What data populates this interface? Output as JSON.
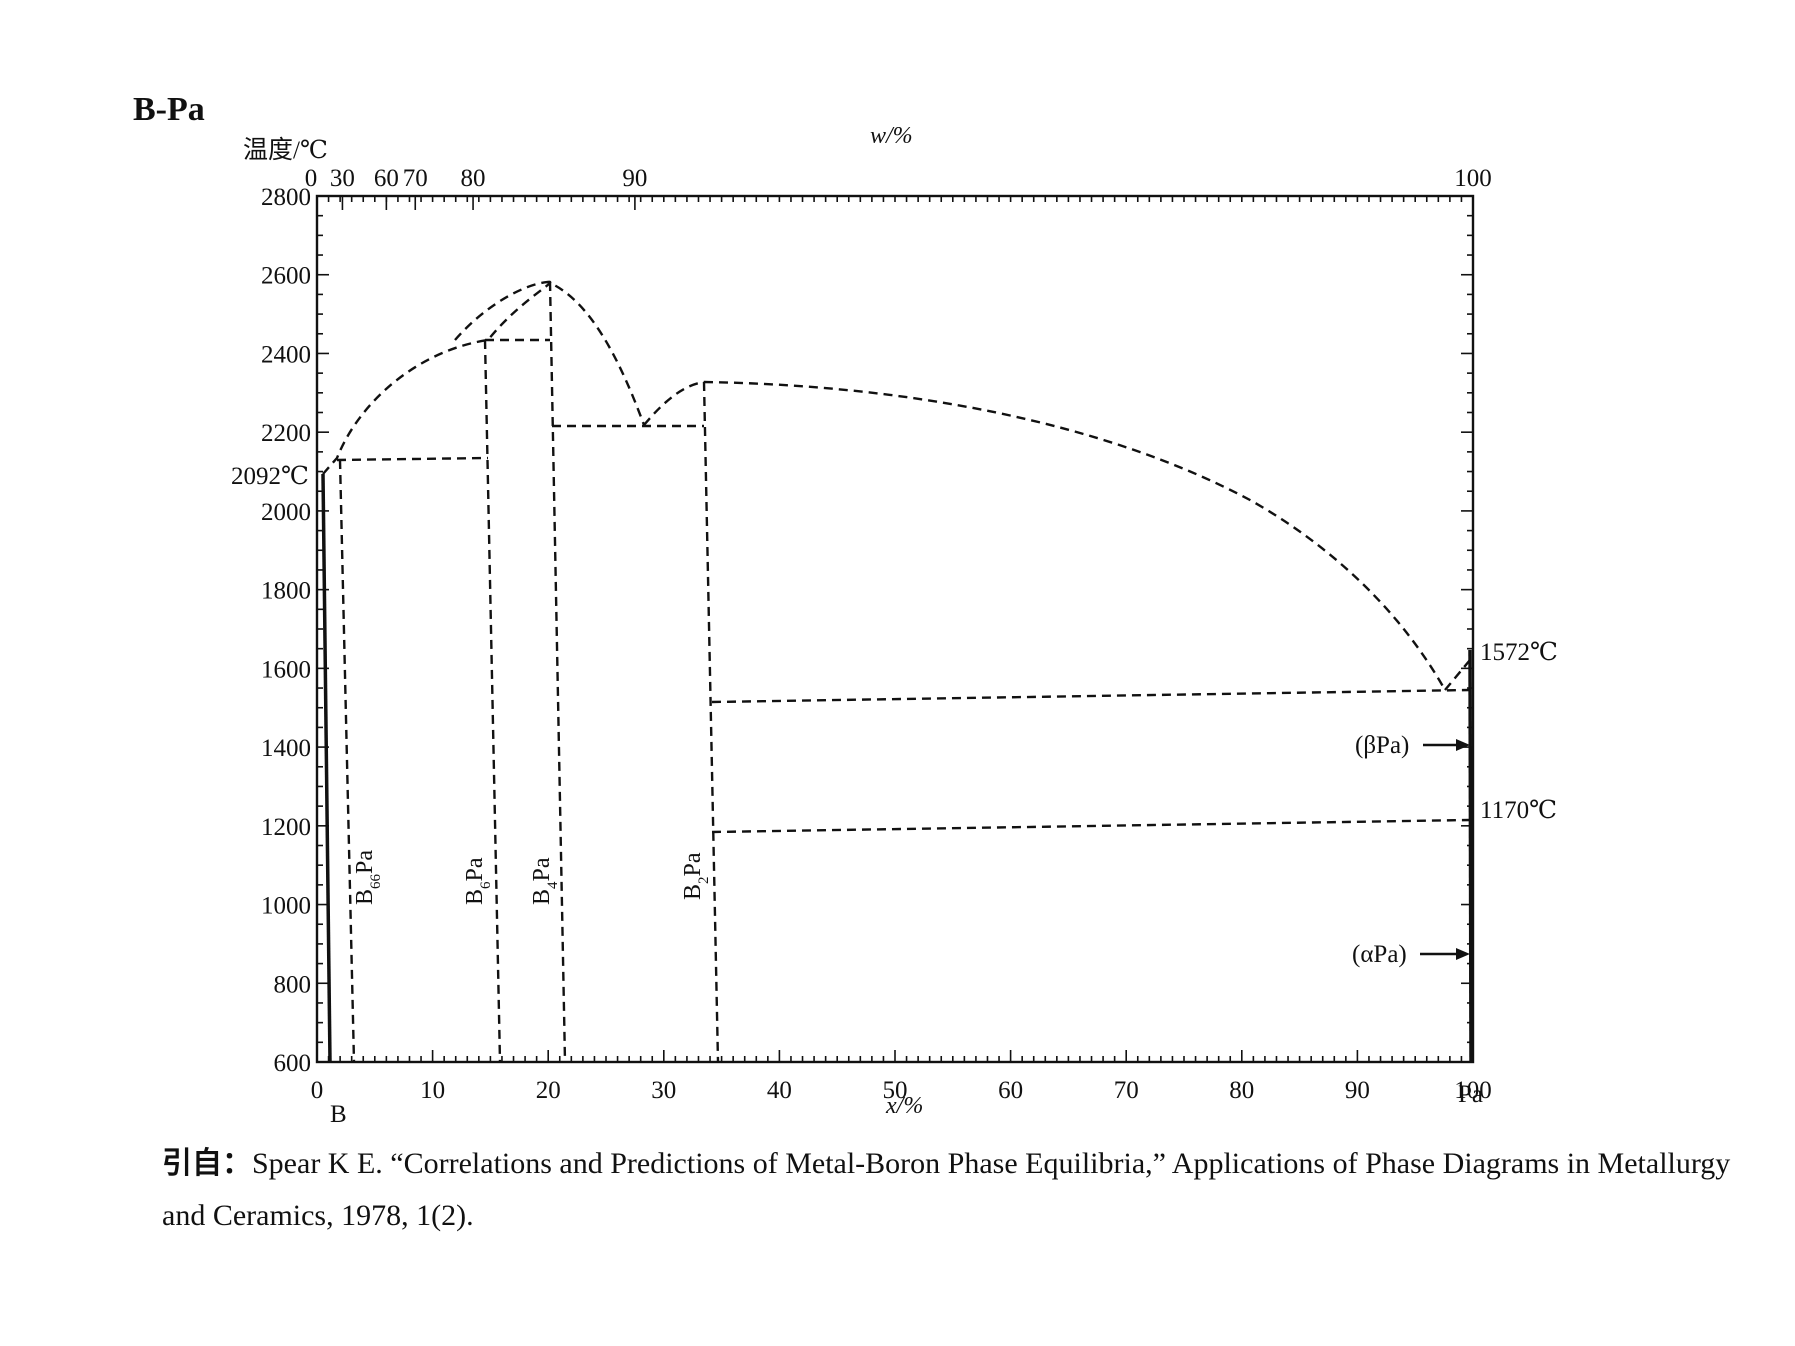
{
  "title": "B-Pa",
  "axes": {
    "y_label": "温度/℃",
    "top_label": "w/%",
    "bottom_label": "x/%",
    "left_element": "B",
    "right_element": "Pa",
    "y_ticks": [
      "600",
      "800",
      "1000",
      "1200",
      "1400",
      "1600",
      "1800",
      "2000",
      "2200",
      "2400",
      "2600",
      "2800"
    ],
    "x_ticks": [
      "0",
      "10",
      "20",
      "30",
      "40",
      "50",
      "60",
      "70",
      "80",
      "90",
      "100"
    ],
    "top_ticks": [
      "0",
      "30",
      "60",
      "70",
      "80",
      "90",
      "100"
    ]
  },
  "annotations": {
    "t_b_melt": "2092℃",
    "t_pa_melt": "1572℃",
    "t_pa_transition": "1170℃",
    "beta_pa": "(βPa)",
    "alpha_pa": "(αPa)"
  },
  "phases": [
    {
      "base": "B",
      "sub": "66",
      "suffix": "Pa"
    },
    {
      "base": "B",
      "sub": "6",
      "suffix": "Pa"
    },
    {
      "base": "B",
      "sub": "4",
      "suffix": "Pa"
    },
    {
      "base": "B",
      "sub": "2",
      "suffix": "Pa"
    }
  ],
  "citation": {
    "prefix": "引自：",
    "text": "Spear K E. “Correlations and Predictions of Metal-Boron Phase Equilibria,” Applications of Phase Diagrams in Metallurgy and Ceramics, 1978, 1(2)."
  },
  "chart_data": {
    "type": "phase-diagram",
    "x_unit": "x/% (atomic % Pa)",
    "y_unit": "℃",
    "xlim": [
      0,
      100
    ],
    "ylim": [
      600,
      2800
    ],
    "special_points": [
      {
        "x": 0,
        "y": 2092
      },
      {
        "x": 100,
        "y": 1572
      },
      {
        "x": 100,
        "y": 1170
      }
    ],
    "phases": [
      {
        "x": 1.5,
        "compound": "B66Pa",
        "top": 2130
      },
      {
        "x": 14.3,
        "compound": "B6Pa",
        "top": 2440
      },
      {
        "x": 20,
        "compound": "B4Pa",
        "top": 2580
      },
      {
        "x": 33.3,
        "compound": "B2Pa",
        "top": 2330
      }
    ]
  }
}
